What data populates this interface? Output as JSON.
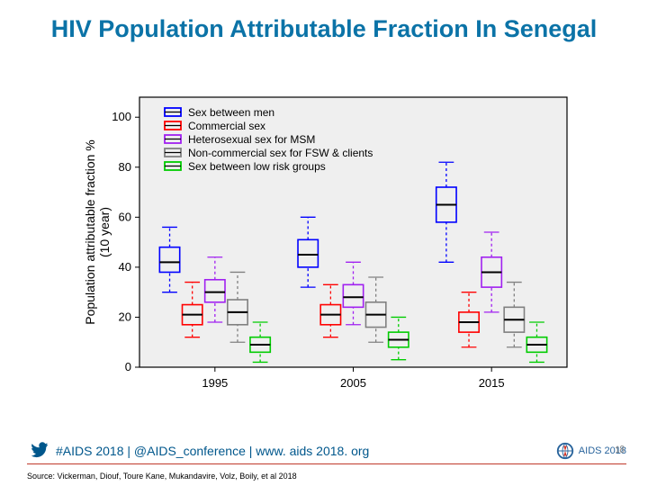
{
  "title": "HIV Population Attributable Fraction In Senegal",
  "footer": {
    "hashtag": "#AIDS 2018 | @AIDS_conference | www. aids 2018. org",
    "conf_label": "AIDS 2018",
    "page_number": "18"
  },
  "source": "Source: Vickerman, Diouf, Toure Kane, Mukandavire, Volz, Boily, et al 2018",
  "chart": {
    "type": "boxplot",
    "ylabel": "Population attributable fraction %\n(10 year)",
    "ylabel_fontsize": 14,
    "xlabel": "",
    "background_color": "#efefef",
    "border_color": "#000000",
    "axis_fontsize": 14,
    "tick_fontsize": 13,
    "legend_fontsize": 12,
    "ylim": [
      0,
      108
    ],
    "ytick_step": 20,
    "xlim": [
      0.5,
      3.9
    ],
    "x_categories": [
      "1995",
      "2005",
      "2015"
    ],
    "x_positions": [
      1.1,
      2.2,
      3.3
    ],
    "box_width": 0.16,
    "group_offsets": [
      -0.36,
      -0.18,
      0,
      0.18,
      0.36
    ],
    "whisker_cap_w": 0.06,
    "series": [
      {
        "name": "Sex between men",
        "color": "#0000ff"
      },
      {
        "name": "Commercial sex",
        "color": "#ff0000"
      },
      {
        "name": "Heterosexual sex for MSM",
        "color": "#a020f0"
      },
      {
        "name": "Non-commercial sex for FSW & clients",
        "color": "#808080"
      },
      {
        "name": "Sex between low risk groups",
        "color": "#00cc00"
      }
    ],
    "data": {
      "1995": [
        {
          "min": 30,
          "q1": 38,
          "median": 42,
          "q3": 48,
          "max": 56
        },
        {
          "min": 12,
          "q1": 17,
          "median": 21,
          "q3": 25,
          "max": 34
        },
        {
          "min": 18,
          "q1": 26,
          "median": 30,
          "q3": 35,
          "max": 44
        },
        {
          "min": 10,
          "q1": 17,
          "median": 22,
          "q3": 27,
          "max": 38
        },
        {
          "min": 2,
          "q1": 6,
          "median": 9,
          "q3": 12,
          "max": 18
        }
      ],
      "2005": [
        {
          "min": 32,
          "q1": 40,
          "median": 45,
          "q3": 51,
          "max": 60
        },
        {
          "min": 12,
          "q1": 17,
          "median": 21,
          "q3": 25,
          "max": 33
        },
        {
          "min": 17,
          "q1": 24,
          "median": 28,
          "q3": 33,
          "max": 42
        },
        {
          "min": 10,
          "q1": 16,
          "median": 21,
          "q3": 26,
          "max": 36
        },
        {
          "min": 3,
          "q1": 8,
          "median": 11,
          "q3": 14,
          "max": 20
        }
      ],
      "2015": [
        {
          "min": 42,
          "q1": 58,
          "median": 65,
          "q3": 72,
          "max": 82
        },
        {
          "min": 8,
          "q1": 14,
          "median": 18,
          "q3": 22,
          "max": 30
        },
        {
          "min": 22,
          "q1": 32,
          "median": 38,
          "q3": 44,
          "max": 54
        },
        {
          "min": 8,
          "q1": 14,
          "median": 19,
          "q3": 24,
          "max": 34
        },
        {
          "min": 2,
          "q1": 6,
          "median": 9,
          "q3": 12,
          "max": 18
        }
      ]
    }
  }
}
